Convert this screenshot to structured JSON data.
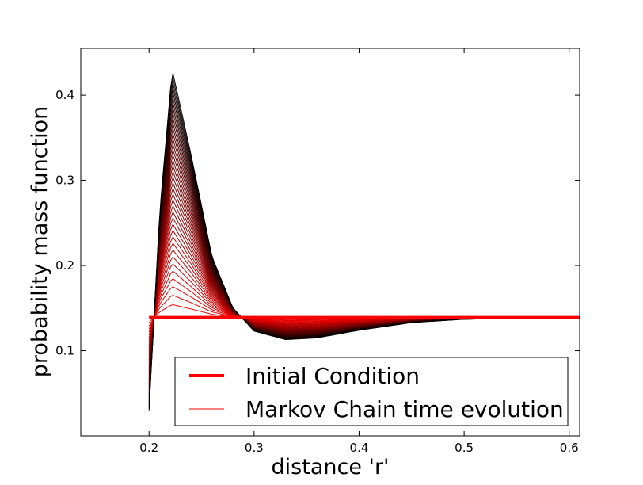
{
  "chart_data": {
    "type": "line",
    "title": "",
    "xlabel": "distance 'r'",
    "ylabel": "probability mass function",
    "xlim": [
      0.135,
      0.61
    ],
    "ylim": [
      0.0,
      0.455
    ],
    "xticks": [
      "0.2",
      "0.3",
      "0.4",
      "0.5",
      "0.6"
    ],
    "xtick_values": [
      0.2,
      0.3,
      0.4,
      0.5,
      0.6
    ],
    "yticks": [
      "0.1",
      "0.2",
      "0.3",
      "0.4"
    ],
    "ytick_values": [
      0.1,
      0.2,
      0.3,
      0.4
    ],
    "grid": false,
    "legend_position": "lower-right",
    "legend": [
      {
        "label": "Initial Condition",
        "color": "#ff0000",
        "style": "thick"
      },
      {
        "label": "Markov Chain time evolution",
        "color": "#ff0000",
        "style": "thin"
      }
    ],
    "series": [
      {
        "role": "initial",
        "color": "#ff0000",
        "x": [
          0.2,
          0.61
        ],
        "y": [
          0.139,
          0.139
        ]
      },
      {
        "role": "time-evolution-final",
        "color": "#000000",
        "x": [
          0.2,
          0.21,
          0.222,
          0.24,
          0.26,
          0.28,
          0.3,
          0.33,
          0.36,
          0.4,
          0.45,
          0.5,
          0.55,
          0.61
        ],
        "y": [
          0.03,
          0.26,
          0.43,
          0.33,
          0.21,
          0.15,
          0.123,
          0.113,
          0.115,
          0.124,
          0.133,
          0.137,
          0.138,
          0.139
        ]
      }
    ],
    "evolution_curve_count": 40,
    "evolution_color_start": "#ff0000",
    "evolution_color_end": "#000000"
  }
}
